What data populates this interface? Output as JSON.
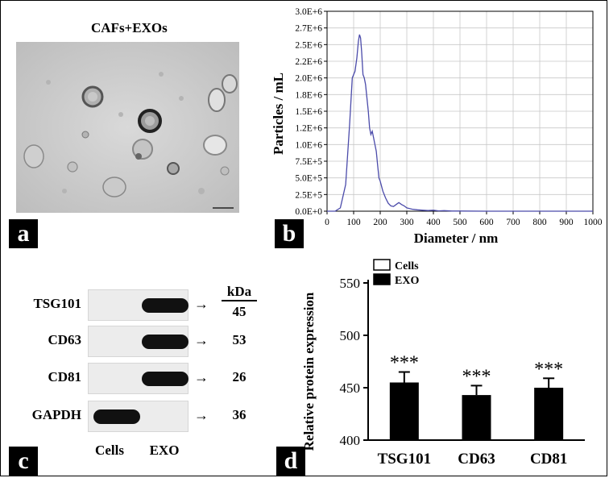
{
  "panels": {
    "a": {
      "letter": "a",
      "title": "CAFs+EXOs"
    },
    "b": {
      "letter": "b"
    },
    "c": {
      "letter": "c"
    },
    "d": {
      "letter": "d"
    }
  },
  "chart_data": [
    {
      "type": "line",
      "xlabel": "Diameter / nm",
      "ylabel": "Particles / mL",
      "xlim": [
        0,
        1000
      ],
      "ylim": [
        0,
        3000000
      ],
      "x_ticks": [
        "0",
        "100",
        "200",
        "300",
        "400",
        "500",
        "600",
        "700",
        "800",
        "900",
        "1000"
      ],
      "y_ticks": [
        "0.0E+0",
        "2.5E+5",
        "5.0E+5",
        "7.5E+5",
        "1.0E+6",
        "1.2E+6",
        "1.5E+6",
        "1.8E+6",
        "2.0E+6",
        "2.2E+6",
        "2.5E+6",
        "2.7E+6",
        "3.0E+6"
      ],
      "grid": true,
      "color": "#4b4baa",
      "series": [
        {
          "x": [
            0,
            30,
            50,
            70,
            85,
            95,
            105,
            112,
            118,
            122,
            126,
            130,
            135,
            140,
            145,
            150,
            155,
            160,
            165,
            170,
            175,
            180,
            185,
            190,
            195,
            200,
            210,
            220,
            230,
            240,
            250,
            260,
            270,
            280,
            290,
            300,
            320,
            340,
            360,
            380,
            400,
            420,
            440,
            470,
            500,
            600,
            700,
            800,
            900,
            1000
          ],
          "y": [
            0,
            0,
            50000,
            400000,
            1300000,
            2000000,
            2100000,
            2300000,
            2550000,
            2650000,
            2600000,
            2400000,
            2050000,
            2000000,
            1900000,
            1700000,
            1500000,
            1250000,
            1150000,
            1200000,
            1100000,
            1000000,
            900000,
            700000,
            500000,
            450000,
            300000,
            200000,
            120000,
            80000,
            70000,
            100000,
            130000,
            100000,
            80000,
            50000,
            30000,
            20000,
            15000,
            10000,
            15000,
            5000,
            8000,
            3000,
            2000,
            0,
            0,
            0,
            0,
            0
          ]
        }
      ]
    },
    {
      "type": "bar",
      "ylabel": "Relative protein expression",
      "ylim": [
        400,
        550
      ],
      "y_ticks": [
        "400",
        "450",
        "500",
        "550"
      ],
      "categories": [
        "TSG101",
        "CD63",
        "CD81"
      ],
      "series": [
        {
          "name": "Cells",
          "values": [
            0,
            0,
            0
          ],
          "color": "#ffffff"
        },
        {
          "name": "EXO",
          "values": [
            455,
            443,
            450
          ],
          "errors": [
            10,
            9,
            9
          ],
          "color": "#000000"
        }
      ],
      "annotations": [
        "***",
        "***",
        "***"
      ],
      "legend": "top-left"
    }
  ],
  "blot": {
    "rows": [
      {
        "label": "TSG101",
        "kda": "45"
      },
      {
        "label": "CD63",
        "kda": "53"
      },
      {
        "label": "CD81",
        "kda": "26"
      },
      {
        "label": "GAPDH",
        "kda": "36"
      }
    ],
    "kda_header": "kDa",
    "lanes": [
      "Cells",
      "EXO"
    ],
    "arrow": "→"
  }
}
